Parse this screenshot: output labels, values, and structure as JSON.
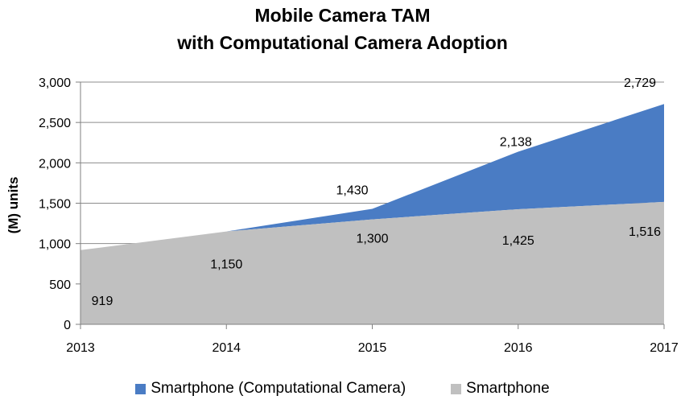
{
  "chart_data": {
    "type": "area",
    "title": [
      "Mobile Camera TAM",
      "with Computational Camera Adoption"
    ],
    "ylabel": "(M) units",
    "xlabel": "",
    "x": [
      "2013",
      "2014",
      "2015",
      "2016",
      "2017"
    ],
    "ylim": [
      0,
      3000
    ],
    "yticks": [
      0,
      500,
      1000,
      1500,
      2000,
      2500,
      3000
    ],
    "ytick_labels": [
      "0",
      "500",
      "1,000",
      "1,500",
      "2,000",
      "2,500",
      "3,000"
    ],
    "grid": true,
    "stacked": true,
    "legend_position": "bottom",
    "series": [
      {
        "name": "Smartphone",
        "color": "#c0c0c0",
        "values": [
          919,
          1150,
          1300,
          1425,
          1516
        ],
        "labels": [
          "919",
          "1,150",
          "1,300",
          "1,425",
          "1,516"
        ]
      },
      {
        "name": "Smartphone (Computational Camera)",
        "color": "#4a7cc4",
        "totals": [
          919,
          1150,
          1430,
          2138,
          2729
        ],
        "total_labels": [
          "",
          "",
          "1,430",
          "2,138",
          "2,729"
        ]
      }
    ],
    "legend": [
      {
        "name": "Smartphone (Computational Camera)",
        "color": "#4a7cc4"
      },
      {
        "name": "Smartphone",
        "color": "#c0c0c0"
      }
    ]
  }
}
